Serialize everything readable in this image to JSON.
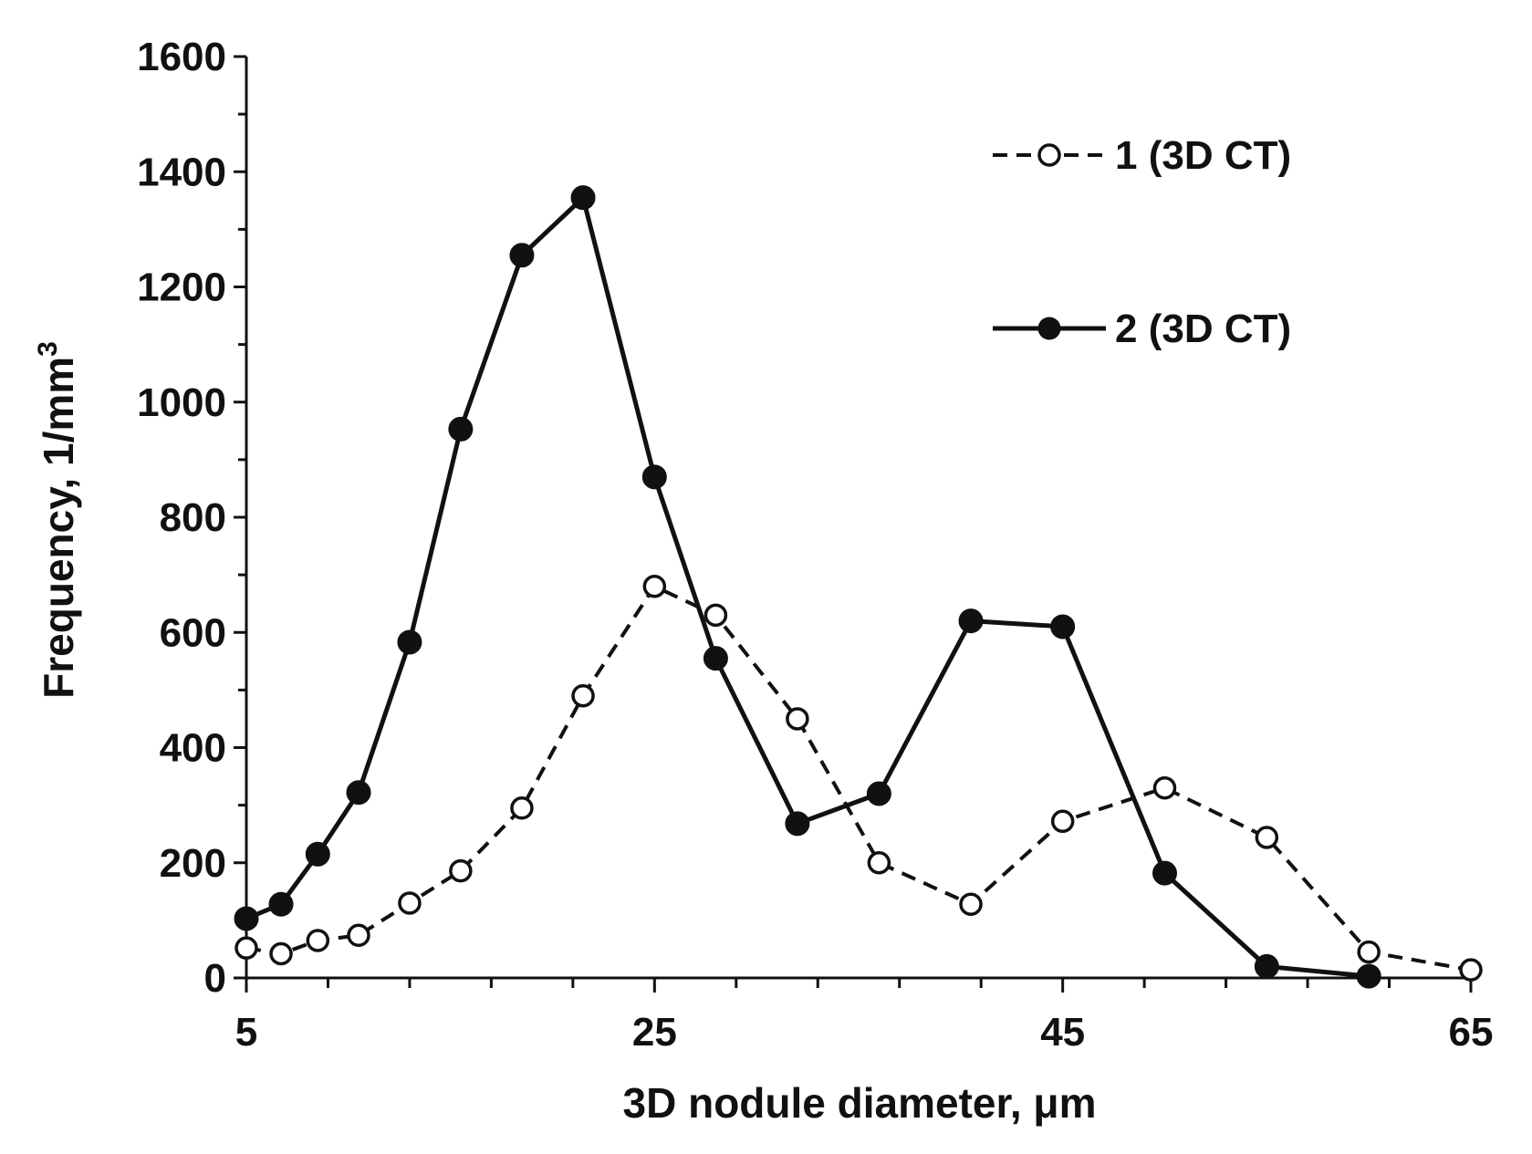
{
  "chart_data": {
    "type": "line",
    "xlabel": "3D nodule diameter, μm",
    "ylabel": "Frequency, 1/mm",
    "ylabel_superscript": "3",
    "xlim": [
      5,
      65
    ],
    "ylim": [
      0,
      1600
    ],
    "x_ticks": [
      "5",
      "25",
      "45",
      "65"
    ],
    "y_ticks": [
      "0",
      "200",
      "400",
      "600",
      "800",
      "1000",
      "1200",
      "1400",
      "1600"
    ],
    "x_minor_step": 4,
    "y_minor_step": 100,
    "grid": false,
    "legend_position": "top-right",
    "series": [
      {
        "name": "1 (3D CT)",
        "style": "dashed",
        "marker": "open-circle",
        "color": "#111111",
        "points": [
          [
            5,
            52
          ],
          [
            6.7,
            42
          ],
          [
            8.5,
            65
          ],
          [
            10.5,
            74
          ],
          [
            13,
            130
          ],
          [
            15.5,
            186
          ],
          [
            18.5,
            295
          ],
          [
            21.5,
            490
          ],
          [
            25,
            680
          ],
          [
            28,
            630
          ],
          [
            32,
            450
          ],
          [
            36,
            200
          ],
          [
            40.5,
            128
          ],
          [
            45,
            272
          ],
          [
            50,
            330
          ],
          [
            55,
            244
          ],
          [
            60,
            45
          ],
          [
            65,
            14
          ]
        ]
      },
      {
        "name": "2 (3D CT)",
        "style": "solid",
        "marker": "filled-circle",
        "color": "#111111",
        "points": [
          [
            5,
            103
          ],
          [
            6.7,
            128
          ],
          [
            8.5,
            215
          ],
          [
            10.5,
            322
          ],
          [
            13,
            583
          ],
          [
            15.5,
            953
          ],
          [
            18.5,
            1255
          ],
          [
            21.5,
            1355
          ],
          [
            25,
            870
          ],
          [
            28,
            555
          ],
          [
            32,
            268
          ],
          [
            36,
            320
          ],
          [
            40.5,
            620
          ],
          [
            45,
            610
          ],
          [
            50,
            182
          ],
          [
            55,
            20
          ],
          [
            60,
            3
          ]
        ]
      }
    ]
  }
}
